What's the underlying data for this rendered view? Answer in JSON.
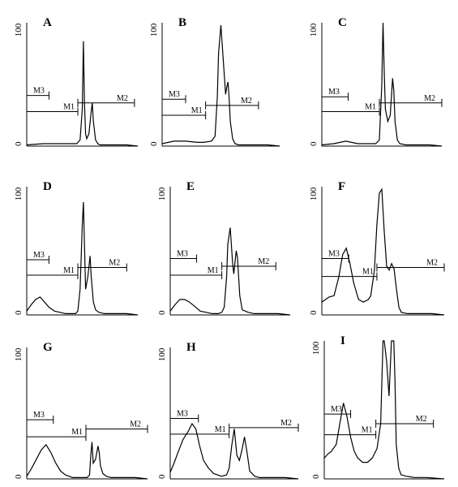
{
  "chart_data": [
    {
      "type": "area",
      "panel": "A",
      "ylim": [
        0,
        100
      ],
      "y_ticks": [
        "0",
        "100"
      ],
      "xlim": [
        0,
        1
      ],
      "series": [
        {
          "x": [
            0,
            0.15,
            0.3,
            0.4,
            0.45,
            0.48,
            0.5,
            0.51,
            0.52,
            0.53,
            0.54,
            0.56,
            0.58,
            0.59,
            0.6,
            0.62,
            0.64,
            0.66,
            0.7,
            0.8,
            0.9,
            1.0
          ],
          "y": [
            1,
            2,
            2,
            2,
            2,
            5,
            30,
            85,
            35,
            10,
            6,
            10,
            28,
            35,
            20,
            5,
            2,
            1,
            1,
            1,
            1,
            0
          ]
        }
      ],
      "markers": [
        {
          "label": "M3",
          "x_start": 0.0,
          "x_end": 0.2,
          "level": 41
        },
        {
          "label": "M1",
          "x_start": 0.0,
          "x_end": 0.46,
          "level": 28
        },
        {
          "label": "M2",
          "x_start": 0.46,
          "x_end": 0.97,
          "level": 35
        }
      ]
    },
    {
      "type": "area",
      "panel": "B",
      "ylim": [
        0,
        100
      ],
      "y_ticks": [
        "0",
        "100"
      ],
      "xlim": [
        0,
        1
      ],
      "series": [
        {
          "x": [
            0,
            0.1,
            0.2,
            0.3,
            0.35,
            0.42,
            0.45,
            0.47,
            0.48,
            0.5,
            0.52,
            0.54,
            0.55,
            0.56,
            0.57,
            0.58,
            0.6,
            0.62,
            0.65,
            0.7,
            0.8,
            0.9,
            1.0
          ],
          "y": [
            2,
            4,
            4,
            3,
            3,
            4,
            8,
            40,
            75,
            98,
            70,
            42,
            48,
            52,
            40,
            20,
            6,
            2,
            1,
            1,
            1,
            1,
            0
          ]
        }
      ],
      "markers": [
        {
          "label": "M3",
          "x_start": 0.0,
          "x_end": 0.2,
          "level": 38
        },
        {
          "label": "M1",
          "x_start": 0.0,
          "x_end": 0.37,
          "level": 25
        },
        {
          "label": "M2",
          "x_start": 0.37,
          "x_end": 0.82,
          "level": 33
        }
      ]
    },
    {
      "type": "area",
      "panel": "C",
      "ylim": [
        0,
        100
      ],
      "y_ticks": [
        "0",
        "100"
      ],
      "xlim": [
        0,
        1
      ],
      "series": [
        {
          "x": [
            0,
            0.1,
            0.2,
            0.3,
            0.4,
            0.45,
            0.48,
            0.5,
            0.51,
            0.52,
            0.53,
            0.55,
            0.57,
            0.59,
            0.6,
            0.61,
            0.63,
            0.65,
            0.7,
            0.8,
            0.9,
            1.0
          ],
          "y": [
            1,
            2,
            4,
            2,
            2,
            2,
            5,
            50,
            100,
            60,
            30,
            20,
            25,
            55,
            45,
            20,
            5,
            2,
            1,
            1,
            1,
            0
          ]
        }
      ],
      "markers": [
        {
          "label": "M3",
          "x_start": 0.0,
          "x_end": 0.22,
          "level": 40
        },
        {
          "label": "M1",
          "x_start": 0.0,
          "x_end": 0.48,
          "level": 28
        },
        {
          "label": "M2",
          "x_start": 0.48,
          "x_end": 1.0,
          "level": 35
        }
      ]
    },
    {
      "type": "area",
      "panel": "D",
      "ylim": [
        0,
        100
      ],
      "y_ticks": [
        "0",
        "100"
      ],
      "xlim": [
        0,
        1
      ],
      "series": [
        {
          "x": [
            0,
            0.04,
            0.08,
            0.12,
            0.16,
            0.2,
            0.25,
            0.3,
            0.35,
            0.4,
            0.44,
            0.46,
            0.48,
            0.5,
            0.51,
            0.52,
            0.53,
            0.55,
            0.57,
            0.58,
            0.6,
            0.62,
            0.65,
            0.7,
            0.8,
            0.9,
            1.0
          ],
          "y": [
            3,
            8,
            12,
            14,
            10,
            6,
            3,
            2,
            1,
            1,
            1,
            3,
            20,
            70,
            88,
            55,
            20,
            30,
            46,
            30,
            10,
            4,
            2,
            1,
            1,
            1,
            0
          ]
        }
      ],
      "markers": [
        {
          "label": "M3",
          "x_start": 0.0,
          "x_end": 0.2,
          "level": 43
        },
        {
          "label": "M1",
          "x_start": 0.0,
          "x_end": 0.46,
          "level": 31
        },
        {
          "label": "M2",
          "x_start": 0.46,
          "x_end": 0.9,
          "level": 37
        }
      ]
    },
    {
      "type": "area",
      "panel": "E",
      "ylim": [
        0,
        100
      ],
      "y_ticks": [
        "0",
        "100"
      ],
      "xlim": [
        0,
        1
      ],
      "series": [
        {
          "x": [
            0,
            0.04,
            0.08,
            0.12,
            0.16,
            0.2,
            0.25,
            0.3,
            0.35,
            0.4,
            0.43,
            0.45,
            0.47,
            0.48,
            0.5,
            0.52,
            0.53,
            0.55,
            0.56,
            0.58,
            0.6,
            0.65,
            0.7,
            0.8,
            0.9,
            1.0
          ],
          "y": [
            3,
            8,
            12,
            12,
            10,
            7,
            3,
            2,
            1,
            1,
            2,
            6,
            30,
            55,
            68,
            40,
            32,
            50,
            45,
            15,
            4,
            2,
            1,
            1,
            1,
            0
          ]
        }
      ],
      "markers": [
        {
          "label": "M3",
          "x_start": 0.0,
          "x_end": 0.22,
          "level": 44
        },
        {
          "label": "M1",
          "x_start": 0.0,
          "x_end": 0.43,
          "level": 31
        },
        {
          "label": "M2",
          "x_start": 0.43,
          "x_end": 0.88,
          "level": 38
        }
      ]
    },
    {
      "type": "area",
      "panel": "F",
      "ylim": [
        0,
        100
      ],
      "y_ticks": [
        "0",
        "100"
      ],
      "xlim": [
        0,
        1
      ],
      "series": [
        {
          "x": [
            0,
            0.03,
            0.06,
            0.1,
            0.14,
            0.17,
            0.2,
            0.23,
            0.26,
            0.3,
            0.34,
            0.38,
            0.4,
            0.43,
            0.45,
            0.47,
            0.49,
            0.51,
            0.53,
            0.55,
            0.57,
            0.59,
            0.61,
            0.63,
            0.65,
            0.7,
            0.8,
            0.9,
            1.0
          ],
          "y": [
            10,
            12,
            14,
            15,
            30,
            47,
            52,
            40,
            25,
            12,
            10,
            12,
            15,
            35,
            70,
            95,
            98,
            65,
            38,
            35,
            40,
            36,
            20,
            6,
            2,
            1,
            1,
            1,
            0
          ]
        }
      ],
      "markers": [
        {
          "label": "M3",
          "x_start": 0.0,
          "x_end": 0.22,
          "level": 44
        },
        {
          "label": "M1",
          "x_start": 0.0,
          "x_end": 0.45,
          "level": 30
        },
        {
          "label": "M2",
          "x_start": 0.45,
          "x_end": 1.0,
          "level": 37
        }
      ]
    },
    {
      "type": "area",
      "panel": "G",
      "ylim": [
        0,
        100
      ],
      "y_ticks": [
        "0",
        "100"
      ],
      "xlim": [
        0,
        1
      ],
      "series": [
        {
          "x": [
            0,
            0.04,
            0.08,
            0.12,
            0.16,
            0.2,
            0.24,
            0.28,
            0.32,
            0.38,
            0.44,
            0.5,
            0.52,
            0.53,
            0.54,
            0.55,
            0.57,
            0.59,
            0.6,
            0.61,
            0.63,
            0.66,
            0.7,
            0.8,
            0.9,
            1.0
          ],
          "y": [
            2,
            8,
            15,
            22,
            26,
            20,
            12,
            6,
            3,
            1,
            1,
            1,
            3,
            18,
            28,
            12,
            15,
            25,
            20,
            10,
            4,
            2,
            1,
            1,
            1,
            0
          ]
        }
      ],
      "markers": [
        {
          "label": "M3",
          "x_start": 0.0,
          "x_end": 0.22,
          "level": 45
        },
        {
          "label": "M1",
          "x_start": 0.0,
          "x_end": 0.49,
          "level": 32
        },
        {
          "label": "M2",
          "x_start": 0.49,
          "x_end": 1.0,
          "level": 38
        }
      ]
    },
    {
      "type": "area",
      "panel": "H",
      "ylim": [
        0,
        100
      ],
      "y_ticks": [
        "0",
        "100"
      ],
      "xlim": [
        0,
        1
      ],
      "series": [
        {
          "x": [
            0,
            0.03,
            0.06,
            0.1,
            0.14,
            0.17,
            0.2,
            0.23,
            0.26,
            0.3,
            0.34,
            0.4,
            0.44,
            0.46,
            0.48,
            0.5,
            0.52,
            0.54,
            0.56,
            0.58,
            0.6,
            0.62,
            0.66,
            0.7,
            0.8,
            0.9,
            1.0
          ],
          "y": [
            5,
            12,
            20,
            30,
            36,
            42,
            38,
            25,
            14,
            8,
            4,
            2,
            3,
            8,
            25,
            38,
            18,
            14,
            22,
            32,
            20,
            6,
            2,
            1,
            1,
            1,
            0
          ]
        }
      ],
      "markers": [
        {
          "label": "M3",
          "x_start": 0.0,
          "x_end": 0.22,
          "level": 46
        },
        {
          "label": "M1",
          "x_start": 0.0,
          "x_end": 0.46,
          "level": 34
        },
        {
          "label": "M2",
          "x_start": 0.46,
          "x_end": 1.0,
          "level": 39
        }
      ]
    },
    {
      "type": "area",
      "panel": "I",
      "ylim": [
        0,
        100
      ],
      "y_ticks": [
        "0",
        "100"
      ],
      "xlim": [
        0,
        1
      ],
      "series": [
        {
          "x": [
            0,
            0.03,
            0.06,
            0.1,
            0.13,
            0.16,
            0.19,
            0.22,
            0.25,
            0.28,
            0.32,
            0.36,
            0.4,
            0.44,
            0.47,
            0.49,
            0.5,
            0.52,
            0.54,
            0.55,
            0.56,
            0.58,
            0.59,
            0.6,
            0.62,
            0.64,
            0.68,
            0.75,
            0.85,
            1.0
          ],
          "y": [
            15,
            18,
            20,
            25,
            40,
            55,
            45,
            30,
            20,
            15,
            12,
            12,
            15,
            22,
            40,
            100,
            100,
            85,
            60,
            80,
            100,
            100,
            70,
            25,
            8,
            3,
            2,
            1,
            1,
            0
          ]
        }
      ],
      "markers": [
        {
          "label": "M3",
          "x_start": 0.0,
          "x_end": 0.22,
          "level": 47
        },
        {
          "label": "M1",
          "x_start": 0.0,
          "x_end": 0.43,
          "level": 32
        },
        {
          "label": "M2",
          "x_start": 0.43,
          "x_end": 0.91,
          "level": 40
        }
      ]
    }
  ]
}
